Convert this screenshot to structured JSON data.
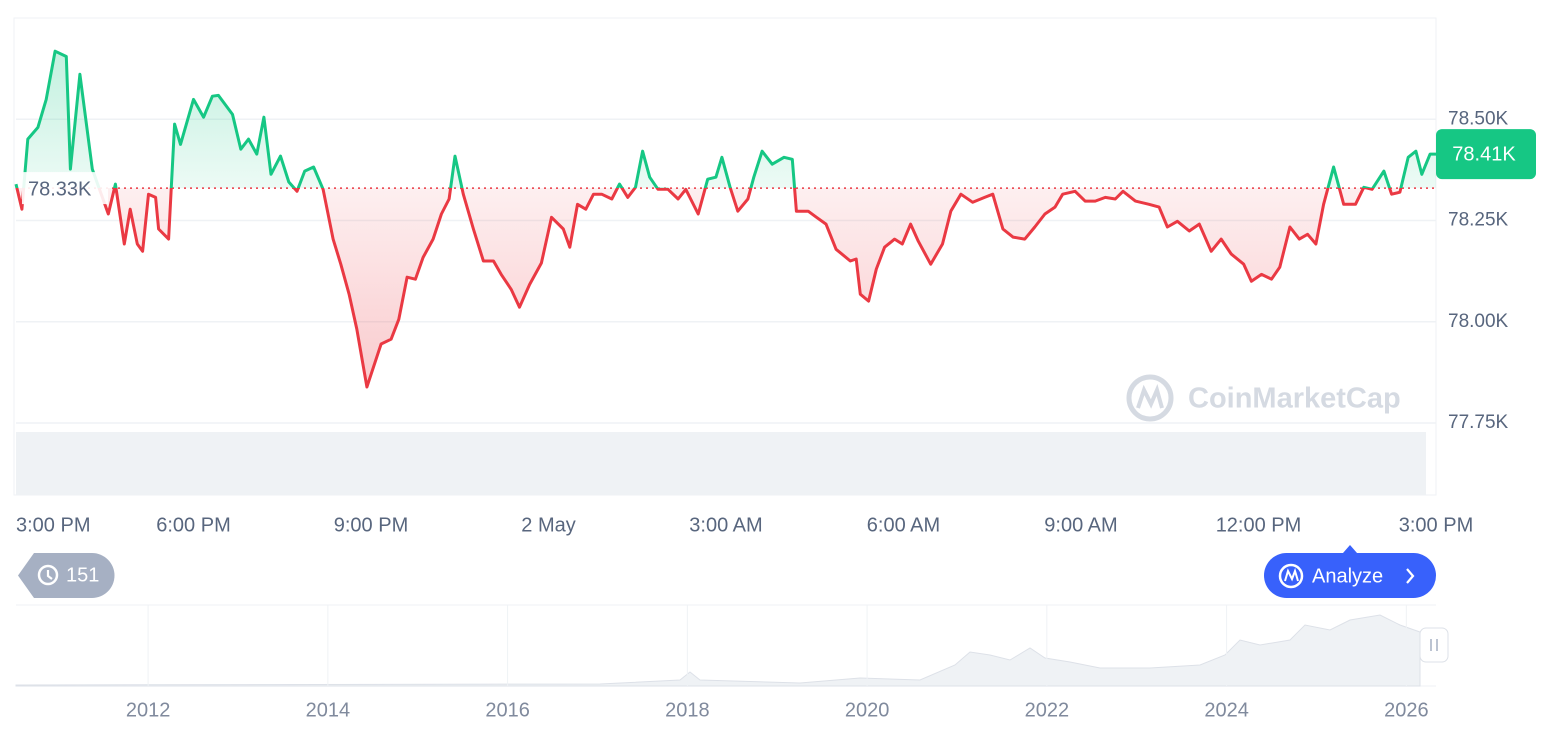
{
  "chart_data": {
    "type": "line",
    "watermark": "CoinMarketCap",
    "up_color": "#16c784",
    "down_color": "#ea3943",
    "grid": true,
    "baseline": {
      "value": 78330,
      "label": "78.33K"
    },
    "current_price": {
      "value": 78414,
      "label": "78.41K"
    },
    "xlim": [
      15,
      39
    ],
    "xticks": [
      {
        "value": 15,
        "label": "3:00 PM"
      },
      {
        "value": 18,
        "label": "6:00 PM"
      },
      {
        "value": 21,
        "label": "9:00 PM"
      },
      {
        "value": 24,
        "label": "2 May"
      },
      {
        "value": 27,
        "label": "3:00 AM"
      },
      {
        "value": 30,
        "label": "6:00 AM"
      },
      {
        "value": 33,
        "label": "9:00 AM"
      },
      {
        "value": 36,
        "label": "12:00 PM"
      },
      {
        "value": 39,
        "label": "3:00 PM"
      }
    ],
    "ylim": [
      77750,
      78750
    ],
    "yticks": [
      {
        "value": 78500,
        "label": "78.50K"
      },
      {
        "value": 78250,
        "label": "78.25K"
      },
      {
        "value": 78000,
        "label": "78.00K"
      },
      {
        "value": 77750,
        "label": "77.75K"
      }
    ],
    "x": [
      15.0,
      15.1,
      15.2,
      15.37,
      15.51,
      15.66,
      15.85,
      15.92,
      16.08,
      16.29,
      16.56,
      16.68,
      16.83,
      16.93,
      17.05,
      17.14,
      17.24,
      17.36,
      17.41,
      17.58,
      17.68,
      17.78,
      18.0,
      18.17,
      18.32,
      18.42,
      18.66,
      18.8,
      18.93,
      19.07,
      19.19,
      19.31,
      19.47,
      19.61,
      19.75,
      19.88,
      20.03,
      20.19,
      20.36,
      20.49,
      20.63,
      20.76,
      20.93,
      21.17,
      21.34,
      21.47,
      21.61,
      21.75,
      21.88,
      22.05,
      22.19,
      22.32,
      22.42,
      22.56,
      22.73,
      22.9,
      23.07,
      23.2,
      23.37,
      23.51,
      23.68,
      23.88,
      24.05,
      24.25,
      24.36,
      24.49,
      24.63,
      24.76,
      24.9,
      25.07,
      25.2,
      25.34,
      25.47,
      25.59,
      25.71,
      25.85,
      26.02,
      26.19,
      26.32,
      26.53,
      26.69,
      26.83,
      26.93,
      27.07,
      27.2,
      27.37,
      27.47,
      27.61,
      27.78,
      27.98,
      28.12,
      28.19,
      28.39,
      28.53,
      28.69,
      28.86,
      29.1,
      29.2,
      29.27,
      29.41,
      29.54,
      29.68,
      29.85,
      29.98,
      30.12,
      30.25,
      30.46,
      30.66,
      30.8,
      30.97,
      31.17,
      31.37,
      31.51,
      31.68,
      31.85,
      32.05,
      32.22,
      32.39,
      32.56,
      32.69,
      32.9,
      33.07,
      33.24,
      33.41,
      33.58,
      33.71,
      33.92,
      34.15,
      34.32,
      34.46,
      34.63,
      34.83,
      35.0,
      35.2,
      35.37,
      35.54,
      35.75,
      35.88,
      36.05,
      36.22,
      36.36,
      36.53,
      36.69,
      36.83,
      36.97,
      37.1,
      37.27,
      37.44,
      37.64,
      37.78,
      37.92,
      38.12,
      38.25,
      38.39,
      38.53,
      38.66,
      38.76,
      38.9,
      39.0
    ],
    "values": [
      78340,
      78278,
      78451,
      78480,
      78549,
      78668,
      78655,
      78377,
      78611,
      78377,
      78266,
      78340,
      78192,
      78278,
      78192,
      78174,
      78315,
      78307,
      78229,
      78204,
      78488,
      78438,
      78549,
      78505,
      78557,
      78559,
      78512,
      78426,
      78451,
      78414,
      78505,
      78364,
      78409,
      78345,
      78322,
      78372,
      78382,
      78327,
      78204,
      78142,
      78068,
      77982,
      77839,
      77945,
      77957,
      78006,
      78110,
      78105,
      78159,
      78204,
      78266,
      78303,
      78409,
      78315,
      78229,
      78150,
      78150,
      78117,
      78080,
      78036,
      78092,
      78145,
      78258,
      78229,
      78184,
      78290,
      78278,
      78315,
      78315,
      78303,
      78340,
      78307,
      78332,
      78421,
      78357,
      78327,
      78327,
      78303,
      78327,
      78266,
      78352,
      78357,
      78406,
      78332,
      78273,
      78303,
      78357,
      78421,
      78389,
      78406,
      78401,
      78273,
      78273,
      78258,
      78241,
      78179,
      78150,
      78155,
      78068,
      78051,
      78130,
      78184,
      78204,
      78192,
      78241,
      78199,
      78142,
      78192,
      78273,
      78315,
      78295,
      78307,
      78315,
      78229,
      78209,
      78204,
      78234,
      78266,
      78283,
      78315,
      78322,
      78298,
      78298,
      78307,
      78303,
      78322,
      78298,
      78290,
      78283,
      78234,
      78248,
      78224,
      78241,
      78174,
      78204,
      78167,
      78142,
      78100,
      78117,
      78105,
      78135,
      78234,
      78204,
      78216,
      78192,
      78290,
      78382,
      78290,
      78290,
      78332,
      78327,
      78372,
      78315,
      78320,
      78406,
      78421,
      78364,
      78414,
      78414
    ]
  },
  "navigator": {
    "xlim": [
      2010.53,
      2026.33
    ],
    "xticks": [
      2012,
      2014,
      2016,
      2018,
      2020,
      2022,
      2024,
      2026
    ]
  },
  "controls": {
    "history_count": 151,
    "analyze_label": "Analyze"
  }
}
